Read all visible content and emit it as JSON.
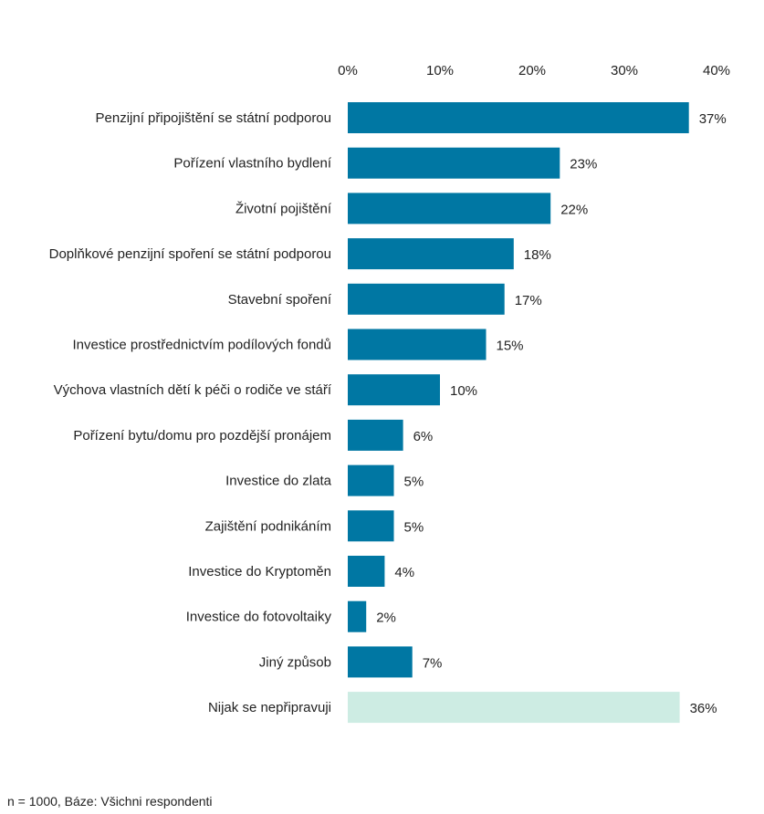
{
  "chart_data": {
    "type": "bar",
    "orientation": "horizontal",
    "categories": [
      "Penzijní připojištění se státní podporou",
      "Pořízení vlastního bydlení",
      "Životní pojištění",
      "Doplňkové penzijní spoření se státní podporou",
      "Stavební spoření",
      "Investice prostřednictvím podílových fondů",
      "Výchova vlastních dětí k péči o rodiče ve stáří",
      "Pořízení bytu/domu pro pozdější pronájem",
      "Investice do zlata",
      "Zajištění podnikáním",
      "Investice do Kryptoměn",
      "Investice do fotovoltaiky",
      "Jiný způsob",
      "Nijak se nepřipravuji"
    ],
    "values": [
      37,
      23,
      22,
      18,
      17,
      15,
      10,
      6,
      5,
      5,
      4,
      2,
      7,
      36
    ],
    "value_labels": [
      "37%",
      "23%",
      "22%",
      "18%",
      "17%",
      "15%",
      "10%",
      "6%",
      "5%",
      "5%",
      "4%",
      "2%",
      "7%",
      "36%"
    ],
    "xlim": [
      0,
      40
    ],
    "x_ticks": [
      0,
      10,
      20,
      30,
      40
    ],
    "x_tick_labels": [
      "0%",
      "10%",
      "20%",
      "30%",
      "40%"
    ],
    "x_axis_position": "top",
    "grid": false,
    "legend": false,
    "colors": {
      "primary": "#0077a3",
      "highlight": "#cdece3"
    },
    "bar_color_index": [
      "primary",
      "primary",
      "primary",
      "primary",
      "primary",
      "primary",
      "primary",
      "primary",
      "primary",
      "primary",
      "primary",
      "primary",
      "primary",
      "highlight"
    ]
  },
  "footnote": "n = 1000, Báze: Všichni respondenti"
}
